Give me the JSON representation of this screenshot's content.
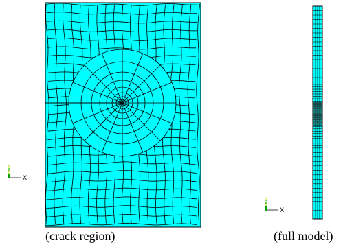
{
  "panels": [
    {
      "id": "crack-region",
      "caption": "(crack region)"
    },
    {
      "id": "full-model",
      "caption": "(full model)"
    }
  ],
  "triad": {
    "y_label": "Y",
    "z_label": "Z",
    "x_label": "X"
  },
  "colors": {
    "mesh_fill": "#00ffff",
    "mesh_line": "#000000",
    "triad_y": "#b4d000",
    "triad_z": "#00a000"
  }
}
